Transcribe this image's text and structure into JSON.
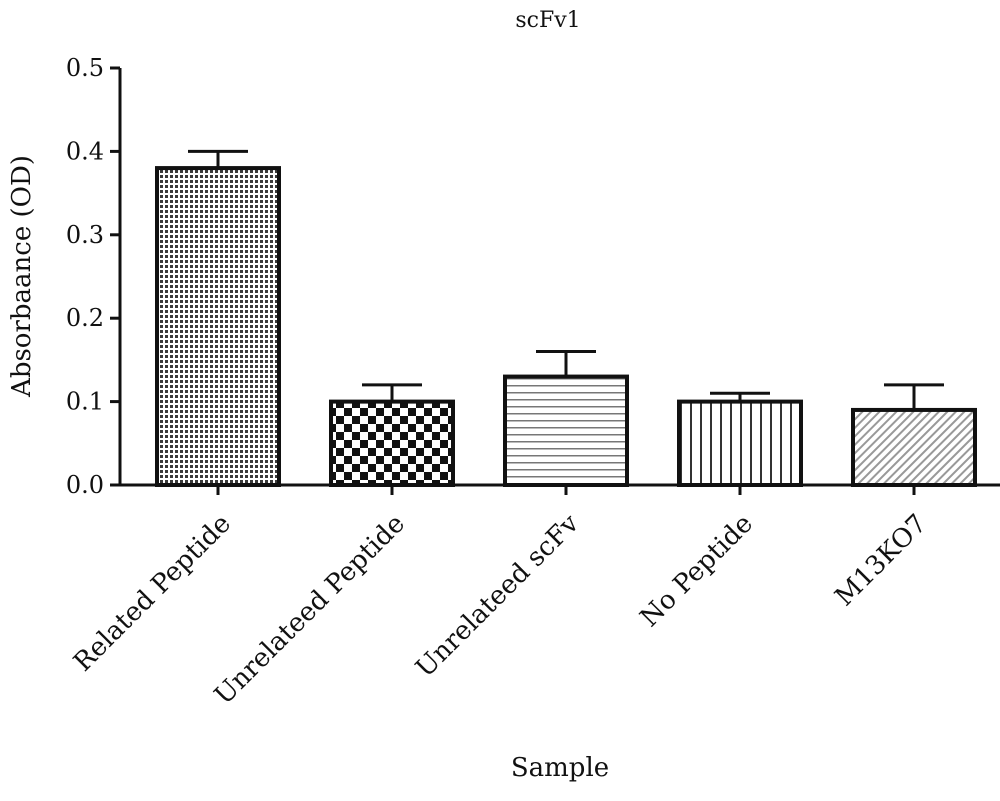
{
  "chart_data": {
    "type": "bar",
    "title": "scFv1",
    "xlabel": "Sample",
    "ylabel": "Absorbaance (OD)",
    "ylim": [
      0.0,
      0.5
    ],
    "yticks": [
      "0.0",
      "0.1",
      "0.2",
      "0.3",
      "0.4",
      "0.5"
    ],
    "categories": [
      "Related Peptide",
      "Unrelateed Peptide",
      "Unrelateed scFv",
      "No Peptide",
      "M13KO7"
    ],
    "values": [
      0.38,
      0.1,
      0.13,
      0.1,
      0.09
    ],
    "errors": [
      0.02,
      0.02,
      0.03,
      0.01,
      0.03
    ],
    "patterns": [
      "dense-dots",
      "checker",
      "horizontal-lines",
      "vertical-lines",
      "diagonal-lines"
    ],
    "bar_color": "#111111",
    "grid": false,
    "legend": "none"
  }
}
